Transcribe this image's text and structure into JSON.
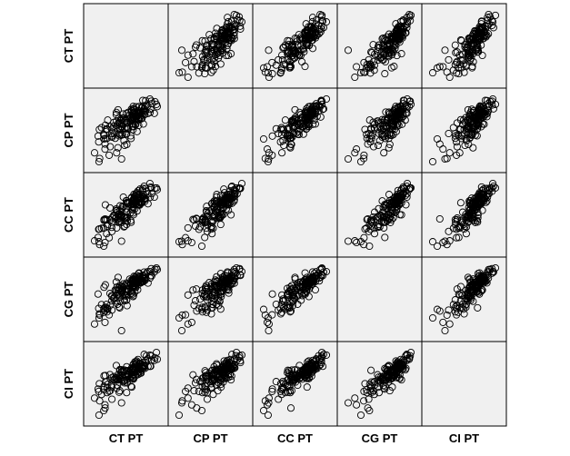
{
  "chart_data": {
    "type": "scatter-matrix",
    "variables": [
      "CT PT",
      "CP PT",
      "CC PT",
      "CG PT",
      "CI PT"
    ],
    "diagonal": "empty",
    "marker": "open-circle",
    "marker_color": "#000000",
    "panel_background": "#f0f0f0",
    "grid": false,
    "axes_ticks": false,
    "n_points_per_panel": 160,
    "pairwise_correlation_approx": [
      [
        1.0,
        0.82,
        0.86,
        0.78,
        0.78
      ],
      [
        0.82,
        1.0,
        0.86,
        0.8,
        0.8
      ],
      [
        0.86,
        0.86,
        1.0,
        0.88,
        0.86
      ],
      [
        0.78,
        0.8,
        0.88,
        1.0,
        0.84
      ],
      [
        0.78,
        0.8,
        0.86,
        0.84,
        1.0
      ]
    ],
    "distribution": "left-skewed, dense cluster at upper-right, sparse tail at lower-left"
  }
}
